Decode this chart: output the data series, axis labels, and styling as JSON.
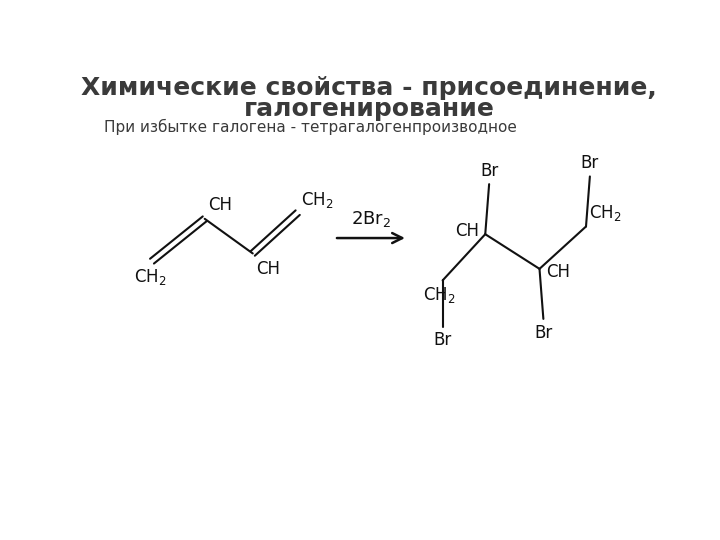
{
  "title_line1": "Химические свойства - присоединение,",
  "title_line2": "галогенирование",
  "subtitle": "При избытке галогена - тетрагалогенпроизводное",
  "title_fontsize": 18,
  "subtitle_fontsize": 11,
  "title_color": "#3a3a3a",
  "subtitle_color": "#3a3a3a",
  "bg_color": "#ffffff",
  "line_color": "#111111",
  "text_color": "#111111",
  "chem_fontsize": 12
}
